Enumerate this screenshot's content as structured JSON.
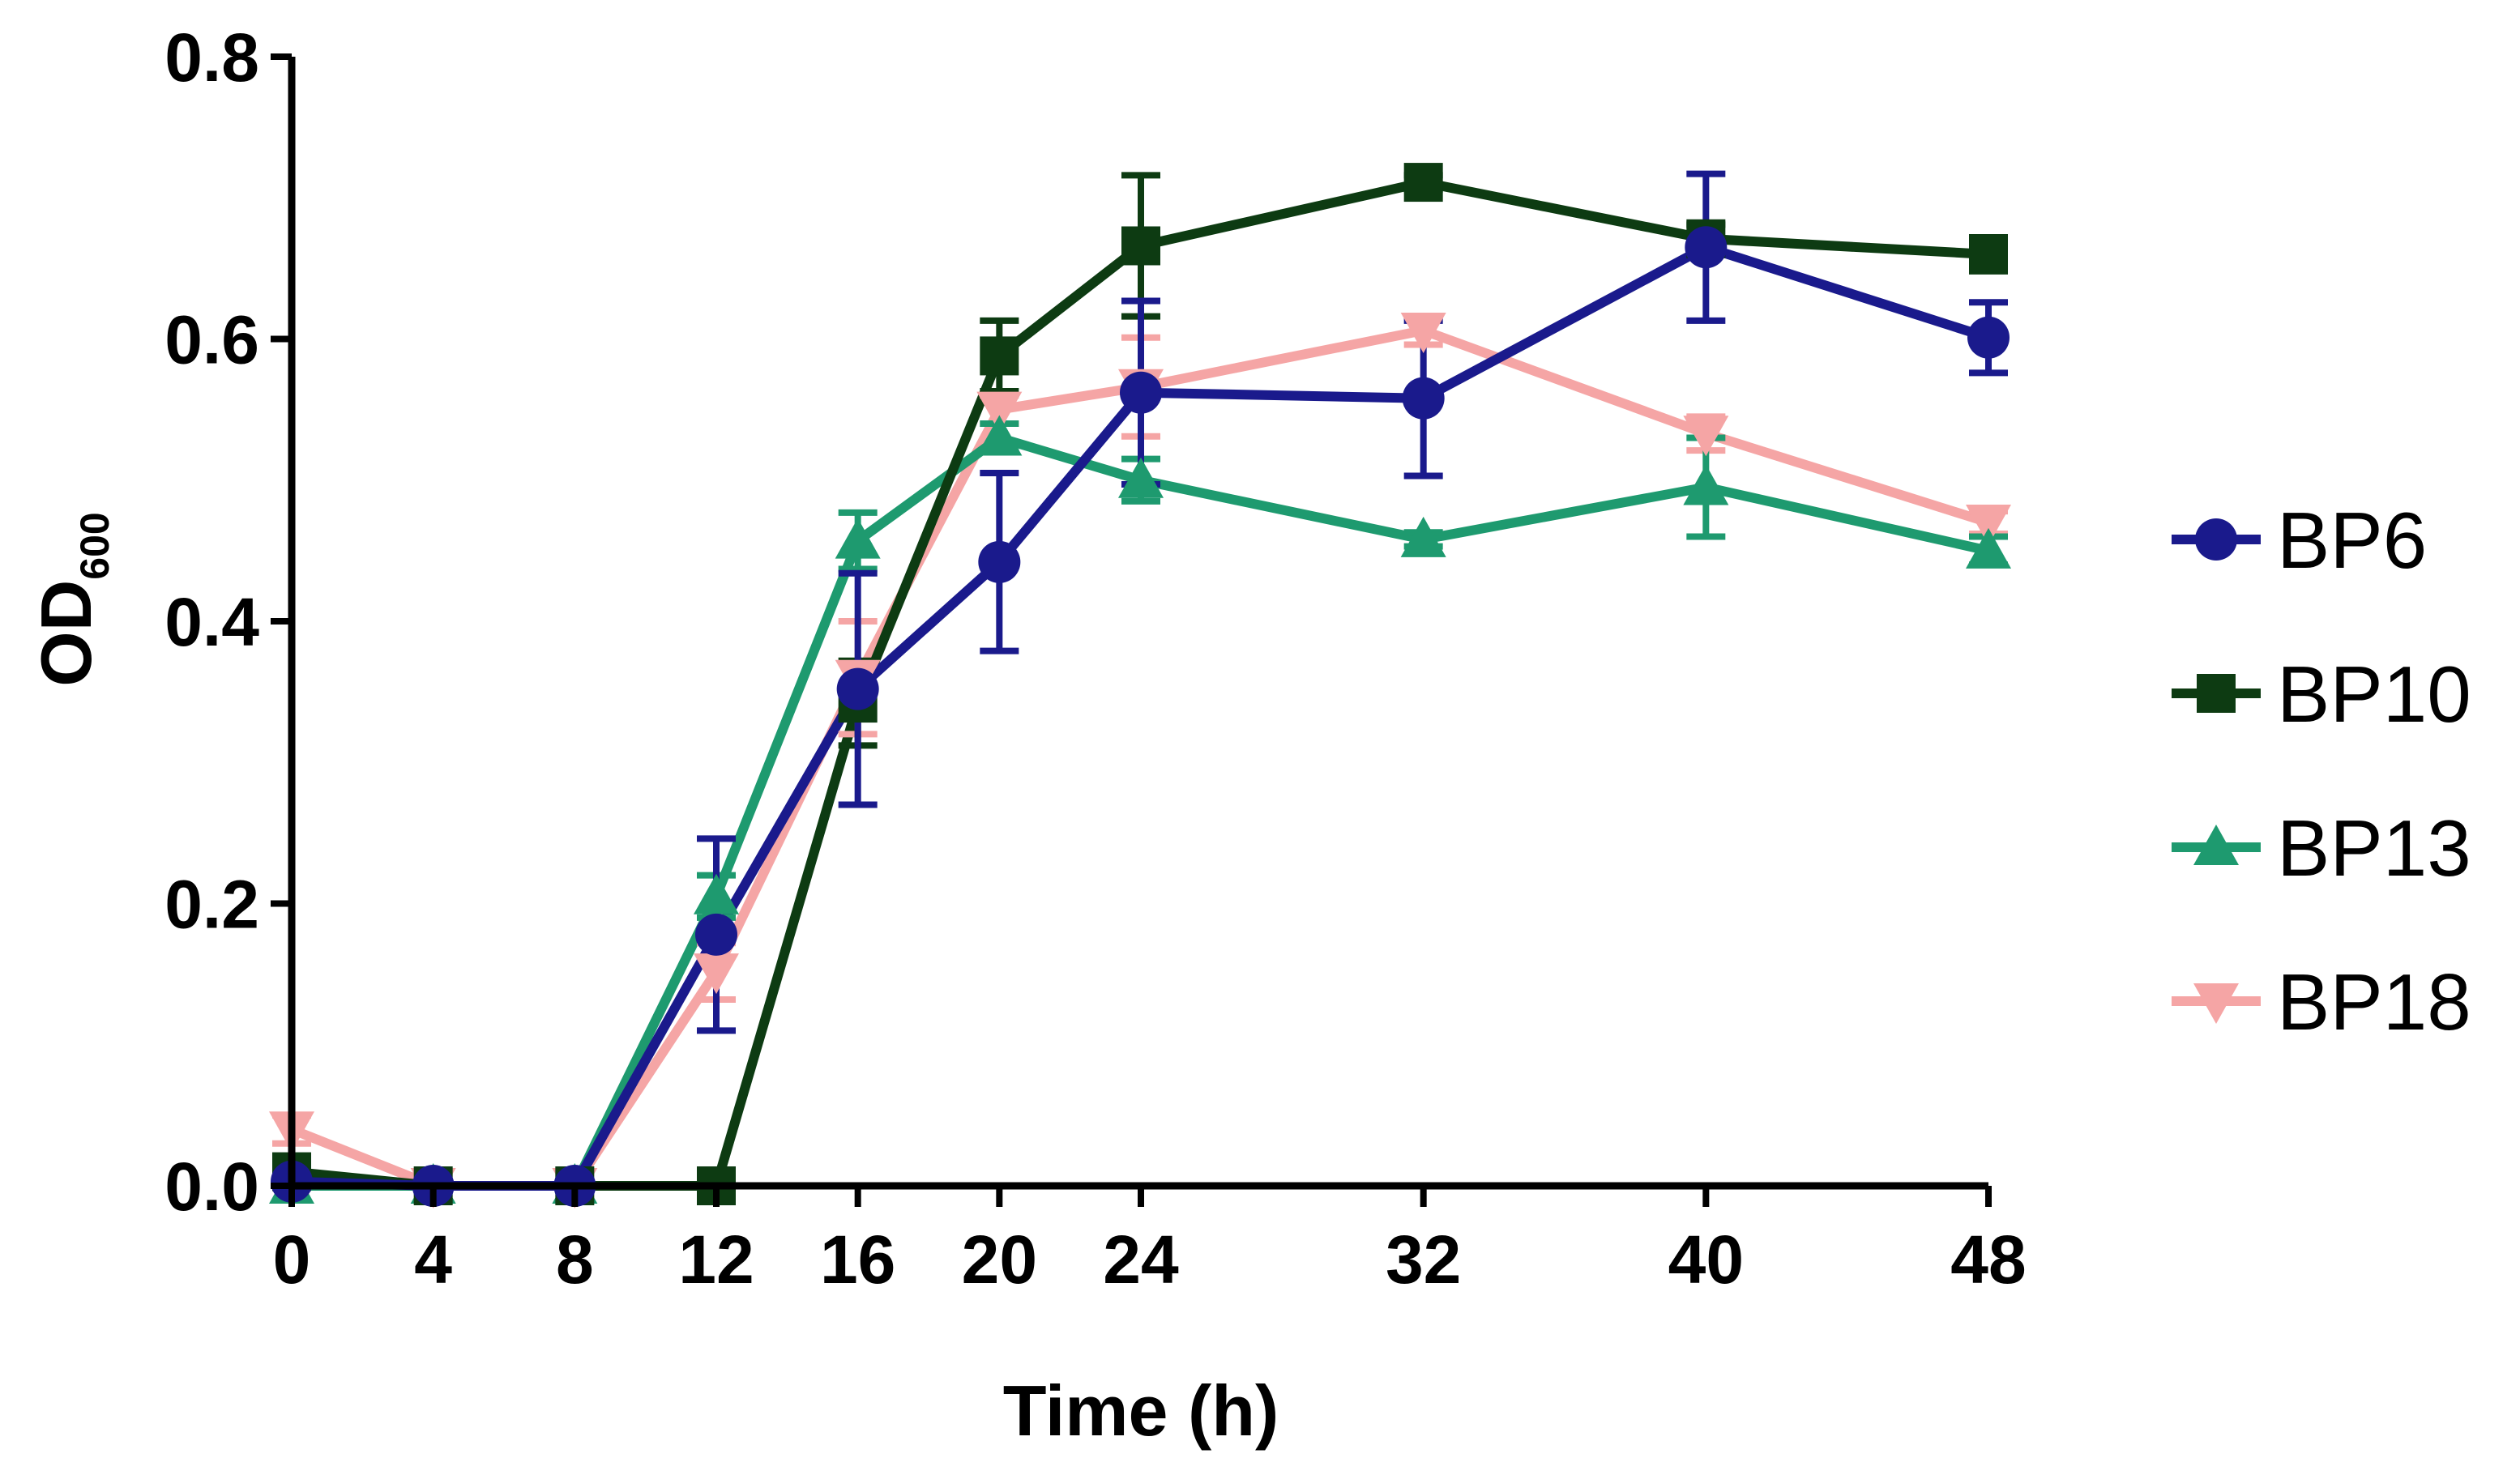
{
  "chart_data": {
    "type": "line",
    "xlabel": "Time (h)",
    "ylabel_main": "OD",
    "ylabel_sub": "600",
    "x": [
      0,
      4,
      8,
      12,
      16,
      20,
      24,
      32,
      40,
      48
    ],
    "x_ticks": [
      "0",
      "4",
      "8",
      "12",
      "16",
      "20",
      "24",
      "32",
      "40",
      "48"
    ],
    "y_ticks": [
      "0.0",
      "0.2",
      "0.4",
      "0.6",
      "0.8"
    ],
    "ylim": [
      0,
      0.8
    ],
    "x_scale": "custom: 0-24 every 4 h widened, 24-48 every 8 h",
    "legend_position": "right",
    "error_bars": true,
    "series": [
      {
        "name": "BP6",
        "marker": "circle",
        "color": "#1a1a8c",
        "values": [
          0.003,
          0.0,
          0.0,
          0.178,
          0.352,
          0.442,
          0.562,
          0.558,
          0.665,
          0.601
        ],
        "errors": [
          0.0,
          0.0,
          0.0,
          0.068,
          0.082,
          0.063,
          0.065,
          0.055,
          0.052,
          0.025
        ]
      },
      {
        "name": "BP10",
        "marker": "square",
        "color": "#0d3b12",
        "values": [
          0.01,
          0.0,
          0.0,
          0.0,
          0.342,
          0.588,
          0.666,
          0.711,
          0.671,
          0.66
        ],
        "errors": [
          0.0,
          0.0,
          0.0,
          0.0,
          0.03,
          0.025,
          0.05,
          0.005,
          0.01,
          0.012
        ]
      },
      {
        "name": "BP13",
        "marker": "triangle-up",
        "color": "#1e9a6f",
        "values": [
          0.0,
          0.0,
          0.0,
          0.205,
          0.457,
          0.53,
          0.5,
          0.458,
          0.495,
          0.45
        ],
        "errors": [
          0.0,
          0.0,
          0.0,
          0.015,
          0.02,
          0.01,
          0.015,
          0.005,
          0.035,
          0.01
        ]
      },
      {
        "name": "BP18",
        "marker": "triangle-down",
        "color": "#f5a5a5",
        "values": [
          0.04,
          0.0,
          0.0,
          0.152,
          0.36,
          0.55,
          0.566,
          0.606,
          0.533,
          0.47
        ],
        "errors": [
          0.01,
          0.0,
          0.0,
          0.02,
          0.04,
          0.01,
          0.035,
          0.01,
          0.012,
          0.008
        ]
      }
    ]
  }
}
